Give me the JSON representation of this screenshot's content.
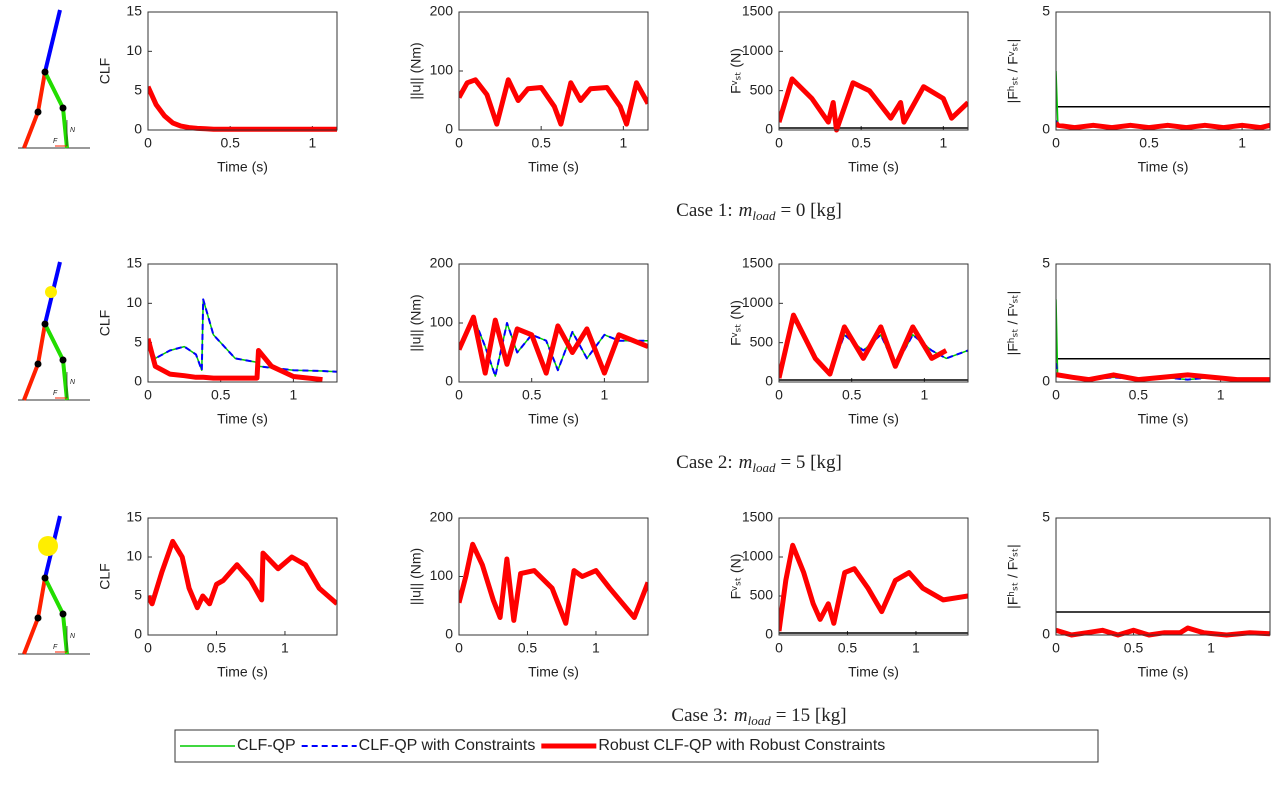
{
  "chart_data": [
    {
      "type": "line",
      "ylabel": "CLF",
      "xlabel": "Time (s)",
      "xlim": [
        0,
        1.15
      ],
      "xticks": [
        0,
        0.5,
        1
      ],
      "ylim": [
        0,
        15
      ],
      "yticks": [
        0,
        5,
        10,
        15
      ],
      "x": [
        0,
        0.05,
        0.1,
        0.15,
        0.2,
        0.25,
        0.3,
        0.35,
        0.4,
        0.5,
        0.6,
        0.7,
        0.8,
        0.9,
        1.0,
        1.1,
        1.15
      ],
      "series": [
        {
          "name": "CLF-QP",
          "color": "#00cc00",
          "width": 1.5,
          "dashed": false,
          "values": [
            5.5,
            3.2,
            1.8,
            0.9,
            0.5,
            0.3,
            0.2,
            0.15,
            0.1,
            0.1,
            0.1,
            0.1,
            0.1,
            0.1,
            0.1,
            0.1,
            0.1
          ]
        },
        {
          "name": "CLF-QP with Constraints",
          "color": "#0000ff",
          "width": 2,
          "dashed": true,
          "values": [
            5.5,
            3.2,
            1.8,
            0.9,
            0.5,
            0.3,
            0.2,
            0.15,
            0.1,
            0.1,
            0.1,
            0.1,
            0.1,
            0.1,
            0.1,
            0.1,
            0.1
          ]
        },
        {
          "name": "Robust CLF-QP with Robust Constraints",
          "color": "#ff0000",
          "width": 5,
          "dashed": false,
          "values": [
            5.5,
            3.2,
            1.8,
            0.9,
            0.5,
            0.3,
            0.2,
            0.15,
            0.1,
            0.1,
            0.1,
            0.1,
            0.1,
            0.1,
            0.1,
            0.1,
            0.1
          ]
        }
      ]
    },
    {
      "type": "line",
      "ylabel": "||u|| (Nm)",
      "xlabel": "Time (s)",
      "xlim": [
        0,
        1.15
      ],
      "xticks": [
        0,
        0.5,
        1
      ],
      "ylim": [
        0,
        200
      ],
      "yticks": [
        0,
        100,
        200
      ],
      "x": [
        0,
        0.05,
        0.1,
        0.17,
        0.23,
        0.3,
        0.36,
        0.42,
        0.5,
        0.58,
        0.62,
        0.68,
        0.74,
        0.8,
        0.9,
        0.98,
        1.02,
        1.08,
        1.15
      ],
      "series": [
        {
          "name": "CLF-QP",
          "color": "#00cc00",
          "width": 1.5,
          "dashed": false,
          "values": [
            55,
            80,
            85,
            60,
            10,
            85,
            50,
            70,
            72,
            40,
            10,
            80,
            50,
            70,
            72,
            40,
            10,
            80,
            45
          ]
        },
        {
          "name": "CLF-QP with Constraints",
          "color": "#0000ff",
          "width": 2,
          "dashed": true,
          "values": [
            55,
            80,
            85,
            60,
            10,
            85,
            50,
            70,
            72,
            40,
            10,
            80,
            50,
            70,
            72,
            40,
            10,
            80,
            45
          ]
        },
        {
          "name": "Robust CLF-QP with Robust Constraints",
          "color": "#ff0000",
          "width": 5,
          "dashed": false,
          "values": [
            55,
            80,
            85,
            60,
            10,
            85,
            50,
            70,
            72,
            40,
            10,
            80,
            50,
            70,
            72,
            40,
            10,
            80,
            45
          ]
        }
      ]
    },
    {
      "type": "line",
      "ylabel": "Fᵛₛₜ (N)",
      "xlabel": "Time (s)",
      "xlim": [
        0,
        1.15
      ],
      "xticks": [
        0,
        0.5,
        1
      ],
      "ylim": [
        0,
        1500
      ],
      "yticks": [
        0,
        500,
        1000,
        1500
      ],
      "hline": 0,
      "x": [
        0,
        0.08,
        0.2,
        0.3,
        0.33,
        0.35,
        0.45,
        0.55,
        0.68,
        0.74,
        0.76,
        0.88,
        1.0,
        1.05,
        1.15
      ],
      "series": [
        {
          "name": "CLF-QP",
          "color": "#00cc00",
          "width": 1.5,
          "dashed": false,
          "values": [
            100,
            650,
            400,
            100,
            350,
            0,
            600,
            500,
            150,
            350,
            100,
            550,
            400,
            150,
            350
          ]
        },
        {
          "name": "CLF-QP with Constraints",
          "color": "#0000ff",
          "width": 2,
          "dashed": true,
          "values": [
            100,
            650,
            400,
            100,
            350,
            0,
            600,
            500,
            150,
            350,
            100,
            550,
            400,
            150,
            350
          ]
        },
        {
          "name": "Robust CLF-QP with Robust Constraints",
          "color": "#ff0000",
          "width": 5,
          "dashed": false,
          "values": [
            100,
            650,
            400,
            100,
            350,
            0,
            600,
            500,
            150,
            350,
            100,
            550,
            400,
            150,
            350
          ]
        }
      ]
    },
    {
      "type": "line",
      "ylabel": "|Fʰₛₜ / Fᵛₛₜ|",
      "xlabel": "Time (s)",
      "xlim": [
        0,
        1.15
      ],
      "xticks": [
        0,
        0.5,
        1
      ],
      "ylim": [
        0,
        5
      ],
      "yticks": [
        0,
        5
      ],
      "hline": 0.9,
      "x": [
        0,
        0.01,
        0.1,
        0.2,
        0.3,
        0.4,
        0.5,
        0.6,
        0.7,
        0.8,
        0.9,
        1.0,
        1.1,
        1.15
      ],
      "series": [
        {
          "name": "CLF-QP",
          "color": "#00cc00",
          "width": 1.5,
          "dashed": false,
          "values": [
            2.5,
            0.2,
            0.1,
            0.2,
            0.1,
            0.2,
            0.1,
            0.2,
            0.1,
            0.2,
            0.1,
            0.2,
            0.1,
            0.2
          ]
        },
        {
          "name": "CLF-QP with Constraints",
          "color": "#0000ff",
          "width": 2,
          "dashed": true,
          "values": [
            0.4,
            0.2,
            0.1,
            0.2,
            0.1,
            0.2,
            0.1,
            0.2,
            0.1,
            0.2,
            0.1,
            0.2,
            0.1,
            0.2
          ]
        },
        {
          "name": "Robust CLF-QP with Robust Constraints",
          "color": "#ff0000",
          "width": 5,
          "dashed": false,
          "values": [
            0.3,
            0.2,
            0.1,
            0.2,
            0.1,
            0.2,
            0.1,
            0.2,
            0.1,
            0.2,
            0.1,
            0.2,
            0.1,
            0.2
          ]
        }
      ]
    },
    {
      "type": "line",
      "ylabel": "CLF",
      "xlabel": "Time (s)",
      "xlim": [
        0,
        1.3
      ],
      "xticks": [
        0,
        0.5,
        1
      ],
      "ylim": [
        0,
        15
      ],
      "yticks": [
        0,
        5,
        10,
        15
      ],
      "x": [
        0,
        0.05,
        0.15,
        0.25,
        0.33,
        0.37,
        0.38,
        0.45,
        0.6,
        0.75,
        0.76,
        0.85,
        1.0,
        1.2,
        1.3
      ],
      "series": [
        {
          "name": "CLF-QP",
          "color": "#00cc00",
          "width": 1.5,
          "dashed": false,
          "values": [
            5,
            3,
            4,
            4.5,
            3.5,
            1.5,
            10.5,
            6,
            3,
            2.5,
            2,
            1.8,
            1.5,
            1.4,
            1.3
          ]
        },
        {
          "name": "CLF-QP with Constraints",
          "color": "#0000ff",
          "width": 2,
          "dashed": true,
          "values": [
            5,
            3,
            4,
            4.5,
            3.5,
            1.5,
            10.5,
            6,
            3,
            2.5,
            2,
            1.8,
            1.5,
            1.4,
            1.3
          ]
        },
        {
          "name": "Robust CLF-QP with Robust Constraints",
          "color": "#ff0000",
          "width": 5,
          "dashed": false,
          "values": [
            5.5,
            2,
            1,
            0.8,
            0.6,
            0.6,
            0.6,
            0.5,
            0.5,
            0.5,
            4,
            2,
            0.7,
            0.3,
            null
          ]
        }
      ]
    },
    {
      "type": "line",
      "ylabel": "||u|| (Nm)",
      "xlabel": "Time (s)",
      "xlim": [
        0,
        1.3
      ],
      "xticks": [
        0,
        0.5,
        1
      ],
      "ylim": [
        0,
        200
      ],
      "yticks": [
        0,
        100,
        200
      ],
      "x": [
        0,
        0.1,
        0.18,
        0.25,
        0.33,
        0.4,
        0.5,
        0.6,
        0.68,
        0.78,
        0.88,
        1.0,
        1.1,
        1.3
      ],
      "series": [
        {
          "name": "CLF-QP",
          "color": "#00cc00",
          "width": 1.5,
          "dashed": false,
          "values": [
            55,
            110,
            60,
            10,
            100,
            50,
            80,
            70,
            20,
            85,
            40,
            80,
            70,
            70
          ]
        },
        {
          "name": "CLF-QP with Constraints",
          "color": "#0000ff",
          "width": 2,
          "dashed": true,
          "values": [
            55,
            110,
            60,
            10,
            100,
            50,
            80,
            70,
            20,
            85,
            40,
            80,
            70,
            70
          ]
        },
        {
          "name": "Robust CLF-QP with Robust Constraints",
          "color": "#ff0000",
          "width": 5,
          "dashed": false,
          "values": [
            55,
            110,
            15,
            105,
            30,
            90,
            80,
            15,
            95,
            50,
            90,
            15,
            80,
            60
          ]
        }
      ]
    },
    {
      "type": "line",
      "ylabel": "Fᵛₛₜ (N)",
      "xlabel": "Time (s)",
      "xlim": [
        0,
        1.3
      ],
      "xticks": [
        0,
        0.5,
        1
      ],
      "ylim": [
        0,
        1500
      ],
      "yticks": [
        0,
        500,
        1000,
        1500
      ],
      "hline": 0,
      "x": [
        0,
        0.1,
        0.25,
        0.35,
        0.45,
        0.58,
        0.7,
        0.8,
        0.92,
        1.05,
        1.15,
        1.3
      ],
      "series": [
        {
          "name": "CLF-QP",
          "color": "#00cc00",
          "width": 1.5,
          "dashed": false,
          "values": [
            50,
            800,
            300,
            100,
            600,
            400,
            600,
            200,
            600,
            400,
            300,
            400
          ]
        },
        {
          "name": "CLF-QP with Constraints",
          "color": "#0000ff",
          "width": 2,
          "dashed": true,
          "values": [
            50,
            800,
            300,
            100,
            600,
            400,
            600,
            200,
            600,
            400,
            300,
            400
          ]
        },
        {
          "name": "Robust CLF-QP with Robust Constraints",
          "color": "#ff0000",
          "width": 5,
          "dashed": false,
          "values": [
            50,
            850,
            300,
            100,
            700,
            300,
            700,
            200,
            700,
            300,
            400,
            null
          ]
        }
      ]
    },
    {
      "type": "line",
      "ylabel": "|Fʰₛₜ / Fᵛₛₜ|",
      "xlabel": "Time (s)",
      "xlim": [
        0,
        1.3
      ],
      "xticks": [
        0,
        0.5,
        1
      ],
      "ylim": [
        0,
        5
      ],
      "yticks": [
        0,
        5
      ],
      "hline": 0.9,
      "x": [
        0,
        0.01,
        0.1,
        0.2,
        0.35,
        0.5,
        0.65,
        0.8,
        0.95,
        1.1,
        1.3
      ],
      "series": [
        {
          "name": "CLF-QP",
          "color": "#00cc00",
          "width": 1.5,
          "dashed": false,
          "values": [
            3.5,
            0.3,
            0.2,
            0.1,
            0.2,
            0.1,
            0.2,
            0.1,
            0.2,
            0.1,
            0.1
          ]
        },
        {
          "name": "CLF-QP with Constraints",
          "color": "#0000ff",
          "width": 2,
          "dashed": true,
          "values": [
            0.8,
            0.3,
            0.2,
            0.1,
            0.2,
            0.1,
            0.2,
            0.1,
            0.2,
            0.1,
            0.1
          ]
        },
        {
          "name": "Robust CLF-QP with Robust Constraints",
          "color": "#ff0000",
          "width": 5,
          "dashed": false,
          "values": [
            0.3,
            0.3,
            0.2,
            0.1,
            0.3,
            0.1,
            0.2,
            0.3,
            0.2,
            0.1,
            0.1
          ]
        }
      ]
    },
    {
      "type": "line",
      "ylabel": "CLF",
      "xlabel": "Time (s)",
      "xlim": [
        0,
        1.38
      ],
      "xticks": [
        0,
        0.5,
        1
      ],
      "ylim": [
        0,
        15
      ],
      "yticks": [
        0,
        5,
        10,
        15
      ],
      "x": [
        0,
        0.03,
        0.1,
        0.18,
        0.25,
        0.3,
        0.36,
        0.4,
        0.45,
        0.5,
        0.55,
        0.65,
        0.75,
        0.83,
        0.84,
        0.95,
        1.05,
        1.15,
        1.25,
        1.38
      ],
      "series": [
        {
          "name": "Robust CLF-QP with Robust Constraints",
          "color": "#ff0000",
          "width": 5,
          "dashed": false,
          "values": [
            5,
            4,
            8,
            12,
            10,
            6,
            3.5,
            5,
            4,
            6.5,
            7,
            9,
            7,
            4.5,
            10.5,
            8.5,
            10,
            9,
            6,
            4
          ]
        }
      ]
    },
    {
      "type": "line",
      "ylabel": "||u|| (Nm)",
      "xlabel": "Time (s)",
      "xlim": [
        0,
        1.38
      ],
      "xticks": [
        0,
        0.5,
        1
      ],
      "ylim": [
        0,
        200
      ],
      "yticks": [
        0,
        100,
        200
      ],
      "x": [
        0,
        0.05,
        0.1,
        0.17,
        0.25,
        0.3,
        0.35,
        0.4,
        0.45,
        0.55,
        0.68,
        0.78,
        0.84,
        0.9,
        1.0,
        1.1,
        1.28,
        1.38
      ],
      "series": [
        {
          "name": "Robust CLF-QP with Robust Constraints",
          "color": "#ff0000",
          "width": 5,
          "dashed": false,
          "values": [
            55,
            100,
            155,
            120,
            60,
            30,
            130,
            25,
            105,
            110,
            80,
            20,
            110,
            100,
            110,
            80,
            30,
            90
          ]
        }
      ]
    },
    {
      "type": "line",
      "ylabel": "Fᵛₛₜ (N)",
      "xlabel": "Time (s)",
      "xlim": [
        0,
        1.38
      ],
      "xticks": [
        0,
        0.5,
        1
      ],
      "ylim": [
        0,
        1500
      ],
      "yticks": [
        0,
        500,
        1000,
        1500
      ],
      "hline": 0,
      "x": [
        0,
        0.05,
        0.1,
        0.18,
        0.25,
        0.3,
        0.36,
        0.4,
        0.48,
        0.55,
        0.65,
        0.75,
        0.85,
        0.95,
        1.05,
        1.2,
        1.38
      ],
      "series": [
        {
          "name": "Robust CLF-QP with Robust Constraints",
          "color": "#ff0000",
          "width": 5,
          "dashed": false,
          "values": [
            50,
            700,
            1150,
            800,
            400,
            200,
            400,
            150,
            800,
            850,
            600,
            300,
            700,
            800,
            600,
            450,
            500
          ]
        }
      ]
    },
    {
      "type": "line",
      "ylabel": "|Fʰₛₜ / Fᵛₛₜ|",
      "xlabel": "Time (s)",
      "xlim": [
        0,
        1.38
      ],
      "xticks": [
        0,
        0.5,
        1
      ],
      "ylim": [
        0,
        5
      ],
      "yticks": [
        0,
        5
      ],
      "hline": 0.9,
      "x": [
        0,
        0.1,
        0.2,
        0.3,
        0.4,
        0.5,
        0.6,
        0.7,
        0.8,
        0.85,
        0.95,
        1.1,
        1.25,
        1.38
      ],
      "series": [
        {
          "name": "Robust CLF-QP with Robust Constraints",
          "color": "#ff0000",
          "width": 5,
          "dashed": false,
          "values": [
            0.2,
            0,
            0.1,
            0.2,
            0,
            0.2,
            0,
            0.1,
            0.1,
            0.3,
            0.1,
            0,
            0.1,
            0.05
          ]
        }
      ]
    }
  ],
  "captions": [
    {
      "prefix": "Case 1:",
      "var": "m",
      "sub": "load",
      "rest": "= 0 [kg]"
    },
    {
      "prefix": "Case 2:",
      "var": "m",
      "sub": "load",
      "rest": "= 5 [kg]"
    },
    {
      "prefix": "Case 3:",
      "var": "m",
      "sub": "load",
      "rest": "= 15 [kg]"
    }
  ],
  "robot_labels": [
    "F",
    "N"
  ]
}
